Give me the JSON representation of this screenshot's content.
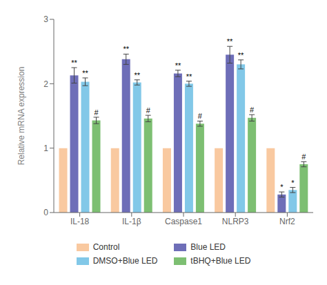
{
  "chart_data": {
    "type": "bar",
    "categories": [
      "IL-18",
      "IL-1β",
      "Caspase1",
      "NLRP3",
      "Nrf2"
    ],
    "series": [
      {
        "name": "Control",
        "color": "#F9C9A0",
        "values": [
          1.0,
          1.0,
          1.0,
          1.0,
          1.0
        ],
        "errors": [
          0.0,
          0.0,
          0.0,
          0.0,
          0.0
        ],
        "annotations": [
          null,
          null,
          null,
          null,
          null
        ]
      },
      {
        "name": "Blue LED",
        "color": "#6E6EB8",
        "values": [
          2.13,
          2.38,
          2.16,
          2.45,
          0.28
        ],
        "errors": [
          0.12,
          0.08,
          0.05,
          0.13,
          0.04
        ],
        "annotations": [
          "**",
          "**",
          "**",
          "**",
          "*"
        ]
      },
      {
        "name": "DMSO+Blue LED",
        "color": "#82C8E8",
        "values": [
          2.03,
          2.02,
          2.0,
          2.3,
          0.35
        ],
        "errors": [
          0.06,
          0.04,
          0.04,
          0.07,
          0.04
        ],
        "annotations": [
          "**",
          "**",
          "**",
          "**",
          "*"
        ]
      },
      {
        "name": "tBHQ+Blue LED",
        "color": "#7DBF72",
        "values": [
          1.43,
          1.46,
          1.38,
          1.47,
          0.75
        ],
        "errors": [
          0.05,
          0.05,
          0.04,
          0.05,
          0.04
        ],
        "annotations": [
          "#",
          "#",
          "#",
          "#",
          "#"
        ]
      }
    ],
    "ylabel": "Relative mRNA expression",
    "ylim": [
      0,
      3
    ],
    "yticks": [
      0,
      1,
      2,
      3
    ],
    "grid": false,
    "legend": "bottom"
  }
}
